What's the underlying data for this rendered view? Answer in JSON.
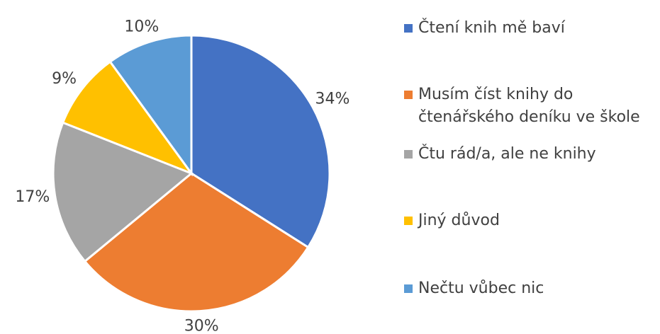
{
  "chart_data": {
    "type": "pie",
    "categories": [
      "Čtení knih mě baví",
      "Musím číst knihy do čtenářského deníku ve škole",
      "Čtu rád/a, ale ne knihy",
      "Jiný důvod",
      "Nečtu vůbec nic"
    ],
    "values": [
      34,
      30,
      17,
      9,
      10
    ],
    "value_labels": [
      "34%",
      "30%",
      "17%",
      "9%",
      "10%"
    ],
    "colors": [
      "#4472c4",
      "#ed7d31",
      "#a5a5a5",
      "#ffc000",
      "#5b9bd5"
    ],
    "legend": "right"
  }
}
